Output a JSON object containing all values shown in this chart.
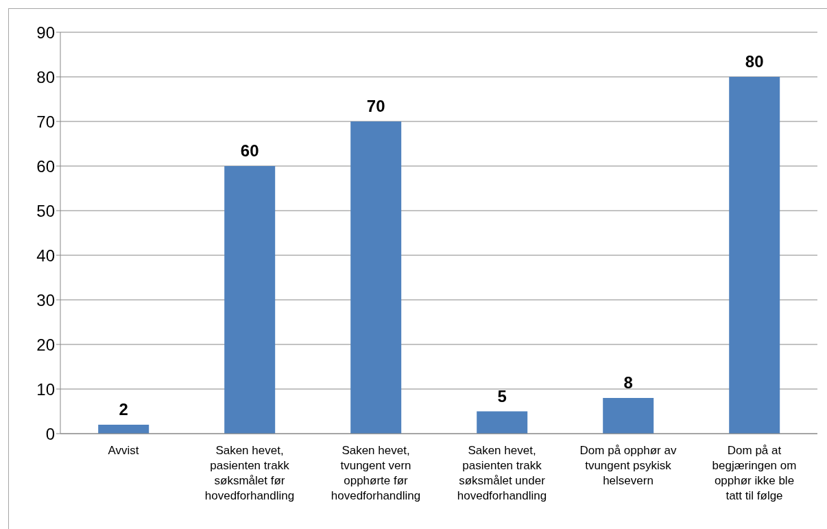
{
  "chart_data": {
    "type": "bar",
    "categories": [
      "Avvist",
      "Saken hevet, pasienten trakk søksmålet før hovedforhandling",
      "Saken hevet, tvungent vern opphørte før hovedforhandling",
      "Saken hevet, pasienten trakk søksmålet under hovedforhandling",
      "Dom på opphør av tvungent psykisk helsevern",
      "Dom på at begjæringen om opphør ikke ble tatt til følge"
    ],
    "values": [
      2,
      60,
      70,
      5,
      8,
      80
    ],
    "color": "#4f81bd",
    "ylim": [
      0,
      90
    ],
    "yticks": [
      0,
      10,
      20,
      30,
      40,
      50,
      60,
      70,
      80,
      90
    ],
    "grid": "y",
    "data_labels": true
  }
}
